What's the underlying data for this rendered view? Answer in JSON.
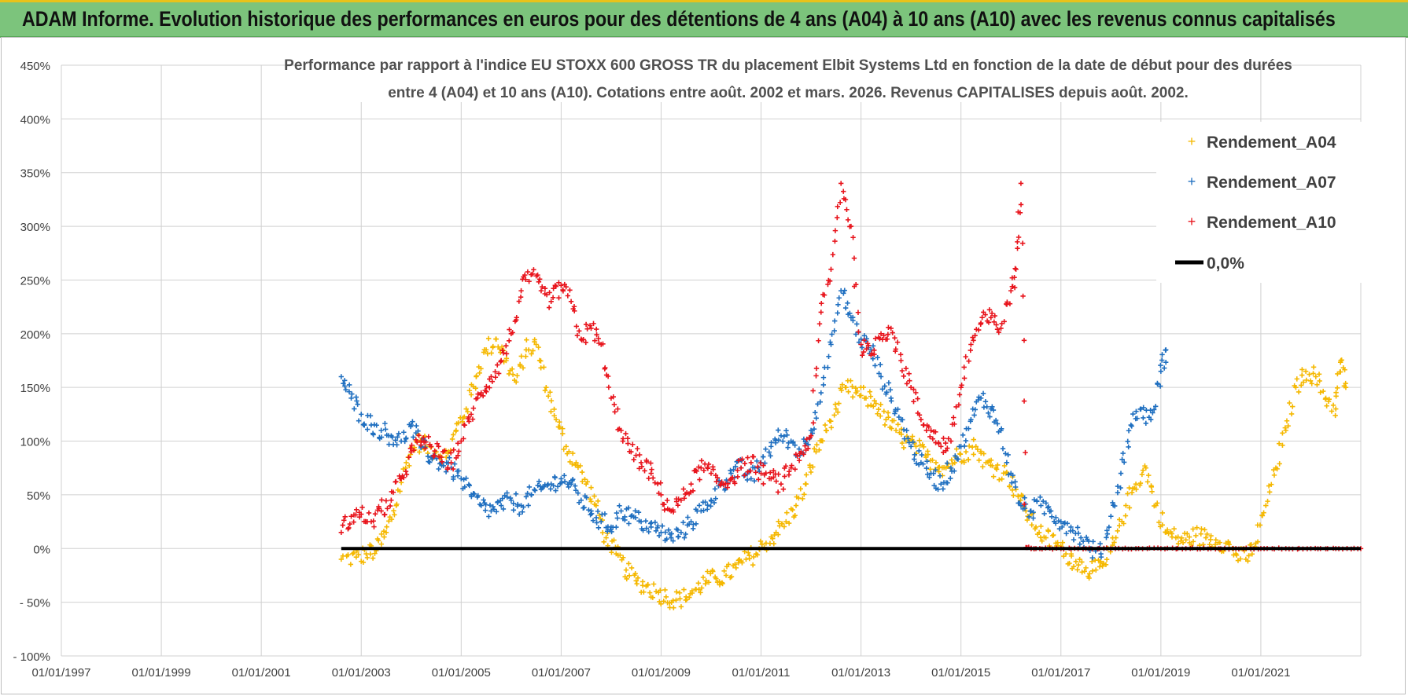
{
  "banner": {
    "title": "ADAM Informe. Evolution historique des performances en euros pour des détentions de 4 ans (A04) à 10 ans (A10) avec les revenus connus capitalisés"
  },
  "colors": {
    "A04": "#f5b800",
    "A07": "#1f6fc0",
    "A10": "#e8141c",
    "zero": "#000000",
    "banner": "#7cc47c",
    "grid": "#d0d0d0"
  },
  "chart_data": {
    "type": "scatter",
    "title_line1": "Performance par rapport à l'indice EU STOXX 600 GROSS TR  du placement Elbit Systems Ltd en fonction de la date de début pour des durées",
    "title_line2": "entre 4 (A04) et 10 ans (A10). Cotations entre août. 2002 et mars. 2026. Revenus CAPITALISES depuis août. 2002.",
    "xlabel": "",
    "ylabel": "",
    "xlim": [
      1997.0,
      2023.0
    ],
    "ylim": [
      -100,
      450
    ],
    "x_ticks": [
      1997,
      1999,
      2001,
      2003,
      2005,
      2007,
      2009,
      2011,
      2013,
      2015,
      2017,
      2019,
      2021
    ],
    "x_tick_labels": [
      "01/01/1997",
      "01/01/1999",
      "01/01/2001",
      "01/01/2003",
      "01/01/2005",
      "01/01/2007",
      "01/01/2009",
      "01/01/2011",
      "01/01/2013",
      "01/01/2015",
      "01/01/2017",
      "01/01/2019",
      "01/01/2021"
    ],
    "y_ticks": [
      -100,
      -50,
      0,
      50,
      100,
      150,
      200,
      250,
      300,
      350,
      400,
      450
    ],
    "y_tick_labels": [
      "- 100%",
      "- 50%",
      "0%",
      "50%",
      "100%",
      "150%",
      "200%",
      "250%",
      "300%",
      "350%",
      "400%",
      "450%"
    ],
    "legend": {
      "position": "top-right",
      "entries": [
        "Rendement_A04",
        "Rendement_A07",
        "Rendement_A10",
        "0,0%"
      ]
    },
    "series": [
      {
        "name": "Rendement_A04",
        "marker": "+",
        "points": [
          [
            2002.6,
            -10
          ],
          [
            2002.9,
            -8
          ],
          [
            2003.1,
            -5
          ],
          [
            2003.3,
            -2
          ],
          [
            2003.5,
            15
          ],
          [
            2003.7,
            40
          ],
          [
            2003.9,
            80
          ],
          [
            2004.1,
            100
          ],
          [
            2004.3,
            95
          ],
          [
            2004.5,
            90
          ],
          [
            2004.7,
            85
          ],
          [
            2004.9,
            110
          ],
          [
            2005.1,
            130
          ],
          [
            2005.3,
            160
          ],
          [
            2005.5,
            185
          ],
          [
            2005.7,
            195
          ],
          [
            2005.9,
            175
          ],
          [
            2006.1,
            155
          ],
          [
            2006.3,
            185
          ],
          [
            2006.5,
            190
          ],
          [
            2006.7,
            150
          ],
          [
            2006.9,
            120
          ],
          [
            2007.1,
            95
          ],
          [
            2007.3,
            80
          ],
          [
            2007.5,
            60
          ],
          [
            2007.7,
            40
          ],
          [
            2007.9,
            10
          ],
          [
            2008.1,
            -5
          ],
          [
            2008.3,
            -20
          ],
          [
            2008.5,
            -30
          ],
          [
            2008.7,
            -35
          ],
          [
            2008.9,
            -40
          ],
          [
            2009.1,
            -45
          ],
          [
            2009.3,
            -48
          ],
          [
            2009.5,
            -45
          ],
          [
            2009.7,
            -38
          ],
          [
            2009.9,
            -30
          ],
          [
            2010.1,
            -28
          ],
          [
            2010.3,
            -25
          ],
          [
            2010.5,
            -18
          ],
          [
            2010.7,
            -10
          ],
          [
            2010.9,
            -5
          ],
          [
            2011.1,
            5
          ],
          [
            2011.3,
            15
          ],
          [
            2011.5,
            25
          ],
          [
            2011.7,
            40
          ],
          [
            2011.9,
            60
          ],
          [
            2012.1,
            90
          ],
          [
            2012.3,
            110
          ],
          [
            2012.5,
            130
          ],
          [
            2012.7,
            150
          ],
          [
            2012.9,
            145
          ],
          [
            2013.1,
            140
          ],
          [
            2013.3,
            135
          ],
          [
            2013.5,
            120
          ],
          [
            2013.7,
            110
          ],
          [
            2013.9,
            100
          ],
          [
            2014.1,
            95
          ],
          [
            2014.3,
            85
          ],
          [
            2014.5,
            80
          ],
          [
            2014.7,
            75
          ],
          [
            2014.9,
            85
          ],
          [
            2015.1,
            90
          ],
          [
            2015.3,
            95
          ],
          [
            2015.5,
            80
          ],
          [
            2015.7,
            75
          ],
          [
            2015.9,
            70
          ],
          [
            2016.1,
            55
          ],
          [
            2016.3,
            35
          ],
          [
            2016.5,
            20
          ],
          [
            2016.7,
            10
          ],
          [
            2016.9,
            5
          ],
          [
            2017.1,
            -5
          ],
          [
            2017.3,
            -12
          ],
          [
            2017.5,
            -18
          ],
          [
            2017.7,
            -20
          ],
          [
            2017.9,
            -15
          ],
          [
            2018.1,
            10
          ],
          [
            2018.3,
            40
          ],
          [
            2018.5,
            60
          ],
          [
            2018.7,
            75
          ],
          [
            2018.9,
            40
          ],
          [
            2019.1,
            15
          ],
          [
            2019.3,
            10
          ],
          [
            2019.5,
            8
          ],
          [
            2019.7,
            12
          ],
          [
            2019.9,
            10
          ],
          [
            2020.1,
            8
          ],
          [
            2020.3,
            5
          ],
          [
            2020.5,
            -5
          ],
          [
            2020.7,
            -10
          ],
          [
            2020.9,
            5
          ],
          [
            2021.1,
            40
          ],
          [
            2021.3,
            75
          ],
          [
            2021.5,
            110
          ],
          [
            2021.7,
            150
          ],
          [
            2021.9,
            165
          ],
          [
            2022.1,
            160
          ],
          [
            2022.3,
            140
          ],
          [
            2022.5,
            130
          ],
          [
            2022.6,
            175
          ],
          [
            2022.7,
            150
          ]
        ]
      },
      {
        "name": "Rendement_A07",
        "marker": "+",
        "points": [
          [
            2002.6,
            160
          ],
          [
            2002.8,
            140
          ],
          [
            2003.0,
            125
          ],
          [
            2003.2,
            115
          ],
          [
            2003.4,
            110
          ],
          [
            2003.6,
            105
          ],
          [
            2003.8,
            100
          ],
          [
            2004.0,
            115
          ],
          [
            2004.2,
            95
          ],
          [
            2004.4,
            85
          ],
          [
            2004.6,
            80
          ],
          [
            2004.8,
            75
          ],
          [
            2005.0,
            65
          ],
          [
            2005.2,
            50
          ],
          [
            2005.4,
            40
          ],
          [
            2005.6,
            35
          ],
          [
            2005.8,
            40
          ],
          [
            2006.0,
            45
          ],
          [
            2006.2,
            40
          ],
          [
            2006.4,
            50
          ],
          [
            2006.6,
            55
          ],
          [
            2006.8,
            60
          ],
          [
            2007.0,
            65
          ],
          [
            2007.2,
            60
          ],
          [
            2007.4,
            45
          ],
          [
            2007.6,
            35
          ],
          [
            2007.8,
            25
          ],
          [
            2008.0,
            20
          ],
          [
            2008.2,
            35
          ],
          [
            2008.4,
            30
          ],
          [
            2008.6,
            25
          ],
          [
            2008.8,
            20
          ],
          [
            2009.0,
            15
          ],
          [
            2009.2,
            10
          ],
          [
            2009.4,
            15
          ],
          [
            2009.6,
            25
          ],
          [
            2009.8,
            35
          ],
          [
            2010.0,
            45
          ],
          [
            2010.2,
            60
          ],
          [
            2010.4,
            70
          ],
          [
            2010.6,
            75
          ],
          [
            2010.8,
            65
          ],
          [
            2011.0,
            80
          ],
          [
            2011.2,
            95
          ],
          [
            2011.4,
            105
          ],
          [
            2011.6,
            100
          ],
          [
            2011.8,
            90
          ],
          [
            2012.0,
            110
          ],
          [
            2012.2,
            145
          ],
          [
            2012.4,
            190
          ],
          [
            2012.6,
            240
          ],
          [
            2012.8,
            215
          ],
          [
            2013.0,
            195
          ],
          [
            2013.2,
            185
          ],
          [
            2013.4,
            160
          ],
          [
            2013.6,
            140
          ],
          [
            2013.8,
            120
          ],
          [
            2014.0,
            95
          ],
          [
            2014.2,
            80
          ],
          [
            2014.4,
            70
          ],
          [
            2014.6,
            60
          ],
          [
            2014.8,
            75
          ],
          [
            2015.0,
            95
          ],
          [
            2015.2,
            120
          ],
          [
            2015.4,
            140
          ],
          [
            2015.6,
            130
          ],
          [
            2015.8,
            110
          ],
          [
            2016.0,
            70
          ],
          [
            2016.2,
            40
          ],
          [
            2016.4,
            35
          ],
          [
            2016.6,
            40
          ],
          [
            2016.8,
            35
          ],
          [
            2017.0,
            25
          ],
          [
            2017.2,
            20
          ],
          [
            2017.4,
            10
          ],
          [
            2017.6,
            0
          ],
          [
            2017.8,
            -5
          ],
          [
            2018.0,
            30
          ],
          [
            2018.2,
            70
          ],
          [
            2018.4,
            115
          ],
          [
            2018.6,
            130
          ],
          [
            2018.8,
            120
          ],
          [
            2019.0,
            165
          ],
          [
            2019.1,
            185
          ]
        ]
      },
      {
        "name": "Rendement_A10",
        "marker": "+",
        "points": [
          [
            2002.6,
            15
          ],
          [
            2002.8,
            30
          ],
          [
            2003.0,
            32
          ],
          [
            2003.2,
            25
          ],
          [
            2003.4,
            35
          ],
          [
            2003.6,
            45
          ],
          [
            2003.8,
            65
          ],
          [
            2004.0,
            90
          ],
          [
            2004.2,
            100
          ],
          [
            2004.4,
            95
          ],
          [
            2004.6,
            85
          ],
          [
            2004.8,
            80
          ],
          [
            2005.0,
            100
          ],
          [
            2005.2,
            125
          ],
          [
            2005.4,
            145
          ],
          [
            2005.6,
            160
          ],
          [
            2005.8,
            175
          ],
          [
            2006.0,
            200
          ],
          [
            2006.2,
            240
          ],
          [
            2006.4,
            255
          ],
          [
            2006.6,
            240
          ],
          [
            2006.8,
            230
          ],
          [
            2007.0,
            245
          ],
          [
            2007.2,
            230
          ],
          [
            2007.4,
            195
          ],
          [
            2007.6,
            205
          ],
          [
            2007.8,
            190
          ],
          [
            2008.0,
            140
          ],
          [
            2008.2,
            110
          ],
          [
            2008.4,
            90
          ],
          [
            2008.6,
            80
          ],
          [
            2008.8,
            70
          ],
          [
            2009.0,
            50
          ],
          [
            2009.2,
            35
          ],
          [
            2009.4,
            45
          ],
          [
            2009.6,
            60
          ],
          [
            2009.8,
            75
          ],
          [
            2010.0,
            70
          ],
          [
            2010.2,
            60
          ],
          [
            2010.4,
            65
          ],
          [
            2010.6,
            75
          ],
          [
            2010.8,
            80
          ],
          [
            2011.0,
            70
          ],
          [
            2011.2,
            65
          ],
          [
            2011.4,
            60
          ],
          [
            2011.6,
            75
          ],
          [
            2011.8,
            90
          ],
          [
            2012.0,
            105
          ],
          [
            2012.2,
            220
          ],
          [
            2012.4,
            260
          ],
          [
            2012.6,
            340
          ],
          [
            2012.8,
            300
          ],
          [
            2013.0,
            190
          ],
          [
            2013.2,
            180
          ],
          [
            2013.4,
            200
          ],
          [
            2013.6,
            205
          ],
          [
            2013.8,
            175
          ],
          [
            2014.0,
            150
          ],
          [
            2014.2,
            120
          ],
          [
            2014.4,
            110
          ],
          [
            2014.6,
            95
          ],
          [
            2014.8,
            100
          ],
          [
            2015.0,
            150
          ],
          [
            2015.2,
            190
          ],
          [
            2015.4,
            210
          ],
          [
            2015.6,
            215
          ],
          [
            2015.8,
            205
          ],
          [
            2016.0,
            240
          ],
          [
            2016.1,
            260
          ],
          [
            2016.2,
            340
          ],
          [
            2016.3,
            1
          ],
          [
            2016.5,
            0
          ],
          [
            2017.0,
            0
          ],
          [
            2017.5,
            0
          ],
          [
            2018.0,
            0
          ],
          [
            2018.5,
            0
          ],
          [
            2019.0,
            0
          ],
          [
            2019.5,
            0
          ],
          [
            2020.0,
            0
          ],
          [
            2020.5,
            0
          ],
          [
            2021.0,
            0
          ],
          [
            2021.5,
            0
          ],
          [
            2022.0,
            0
          ],
          [
            2022.5,
            0
          ],
          [
            2023.0,
            0
          ]
        ]
      },
      {
        "name": "0,0%",
        "type": "line",
        "points": [
          [
            2002.6,
            0
          ],
          [
            2023.0,
            0
          ]
        ]
      }
    ]
  }
}
